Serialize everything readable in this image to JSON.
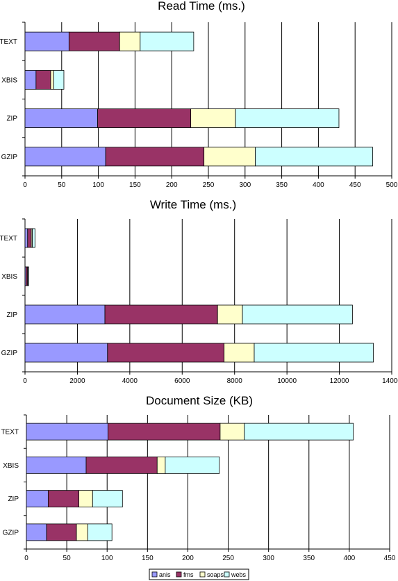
{
  "chart_data": [
    {
      "type": "bar",
      "orientation": "horizontal",
      "stacked": true,
      "title": "Read Time (ms.)",
      "categories": [
        "TEXT",
        "XBIS",
        "ZIP",
        "GZIP"
      ],
      "xlim": [
        0,
        500
      ],
      "xticks": [
        0,
        50,
        100,
        150,
        200,
        250,
        300,
        350,
        400,
        450,
        500
      ],
      "grid": "vertical",
      "series": [
        {
          "name": "anis",
          "values": [
            60,
            15,
            99,
            110
          ]
        },
        {
          "name": "fms",
          "values": [
            69,
            20,
            127,
            134
          ]
        },
        {
          "name": "soaps",
          "values": [
            28,
            4,
            61,
            70
          ]
        },
        {
          "name": "webs",
          "values": [
            73,
            14,
            141,
            160
          ]
        }
      ]
    },
    {
      "type": "bar",
      "orientation": "horizontal",
      "stacked": true,
      "title": "Write Time (ms.)",
      "categories": [
        "TEXT",
        "XBIS",
        "ZIP",
        "GZIP"
      ],
      "xlim": [
        0,
        14000
      ],
      "xticks": [
        0,
        2000,
        4000,
        6000,
        8000,
        10000,
        12000,
        14000
      ],
      "grid": "vertical",
      "series": [
        {
          "name": "anis",
          "values": [
            100,
            40,
            3050,
            3150
          ]
        },
        {
          "name": "fms",
          "values": [
            140,
            60,
            4300,
            4450
          ]
        },
        {
          "name": "soaps",
          "values": [
            40,
            10,
            950,
            1150
          ]
        },
        {
          "name": "webs",
          "values": [
            100,
            30,
            4200,
            4550
          ]
        }
      ]
    },
    {
      "type": "bar",
      "orientation": "horizontal",
      "stacked": true,
      "title": "Document Size (KB)",
      "categories": [
        "TEXT",
        "XBIS",
        "ZIP",
        "GZIP"
      ],
      "xlim": [
        0,
        450
      ],
      "xticks": [
        0,
        50,
        100,
        150,
        200,
        250,
        300,
        350,
        400,
        450
      ],
      "grid": "vertical",
      "series": [
        {
          "name": "anis",
          "values": [
            101,
            74,
            27,
            25
          ]
        },
        {
          "name": "fms",
          "values": [
            139,
            88,
            38,
            37
          ]
        },
        {
          "name": "soaps",
          "values": [
            30,
            10,
            17,
            14
          ]
        },
        {
          "name": "webs",
          "values": [
            135,
            67,
            37,
            30
          ]
        }
      ]
    }
  ],
  "legend": {
    "placement": "bottom",
    "items": [
      "anis",
      "fms",
      "soaps",
      "webs"
    ]
  },
  "colors": {
    "anis": "#9999ff",
    "fms": "#993366",
    "soaps": "#ffffcc",
    "webs": "#ccffff",
    "grid": "#000000",
    "bar_stroke": "#000000"
  }
}
